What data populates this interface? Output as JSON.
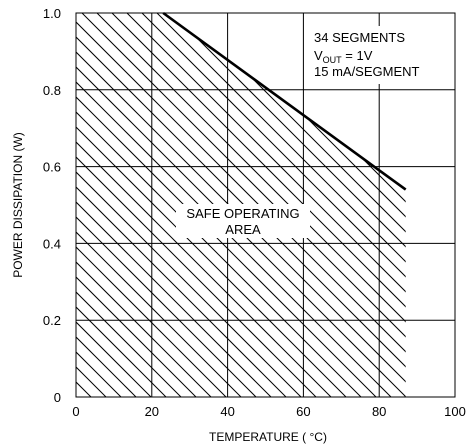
{
  "chart_data": {
    "type": "area",
    "title": "",
    "xlabel": "TEMPERATURE ( °C)",
    "ylabel": "POWER DISSIPATION (W)",
    "xlim": [
      0,
      100
    ],
    "ylim": [
      0,
      1.0
    ],
    "x_ticks": [
      "0",
      "20",
      "40",
      "60",
      "80",
      "100"
    ],
    "y_ticks": [
      "0",
      "0.2",
      "0.4",
      "0.6",
      "0.8",
      "1.0"
    ],
    "grid": true,
    "series": [
      {
        "x": [
          23,
          87
        ],
        "y": [
          1.0,
          0.54
        ]
      }
    ],
    "region_label": [
      "SAFE OPERATING",
      "AREA"
    ],
    "annotation": {
      "line1": "34 SEGMENTS",
      "line2_prefix": "V",
      "line2_sub": "OUT",
      "line2_suffix": " = 1V",
      "line3": "15 mA/SEGMENT"
    }
  }
}
